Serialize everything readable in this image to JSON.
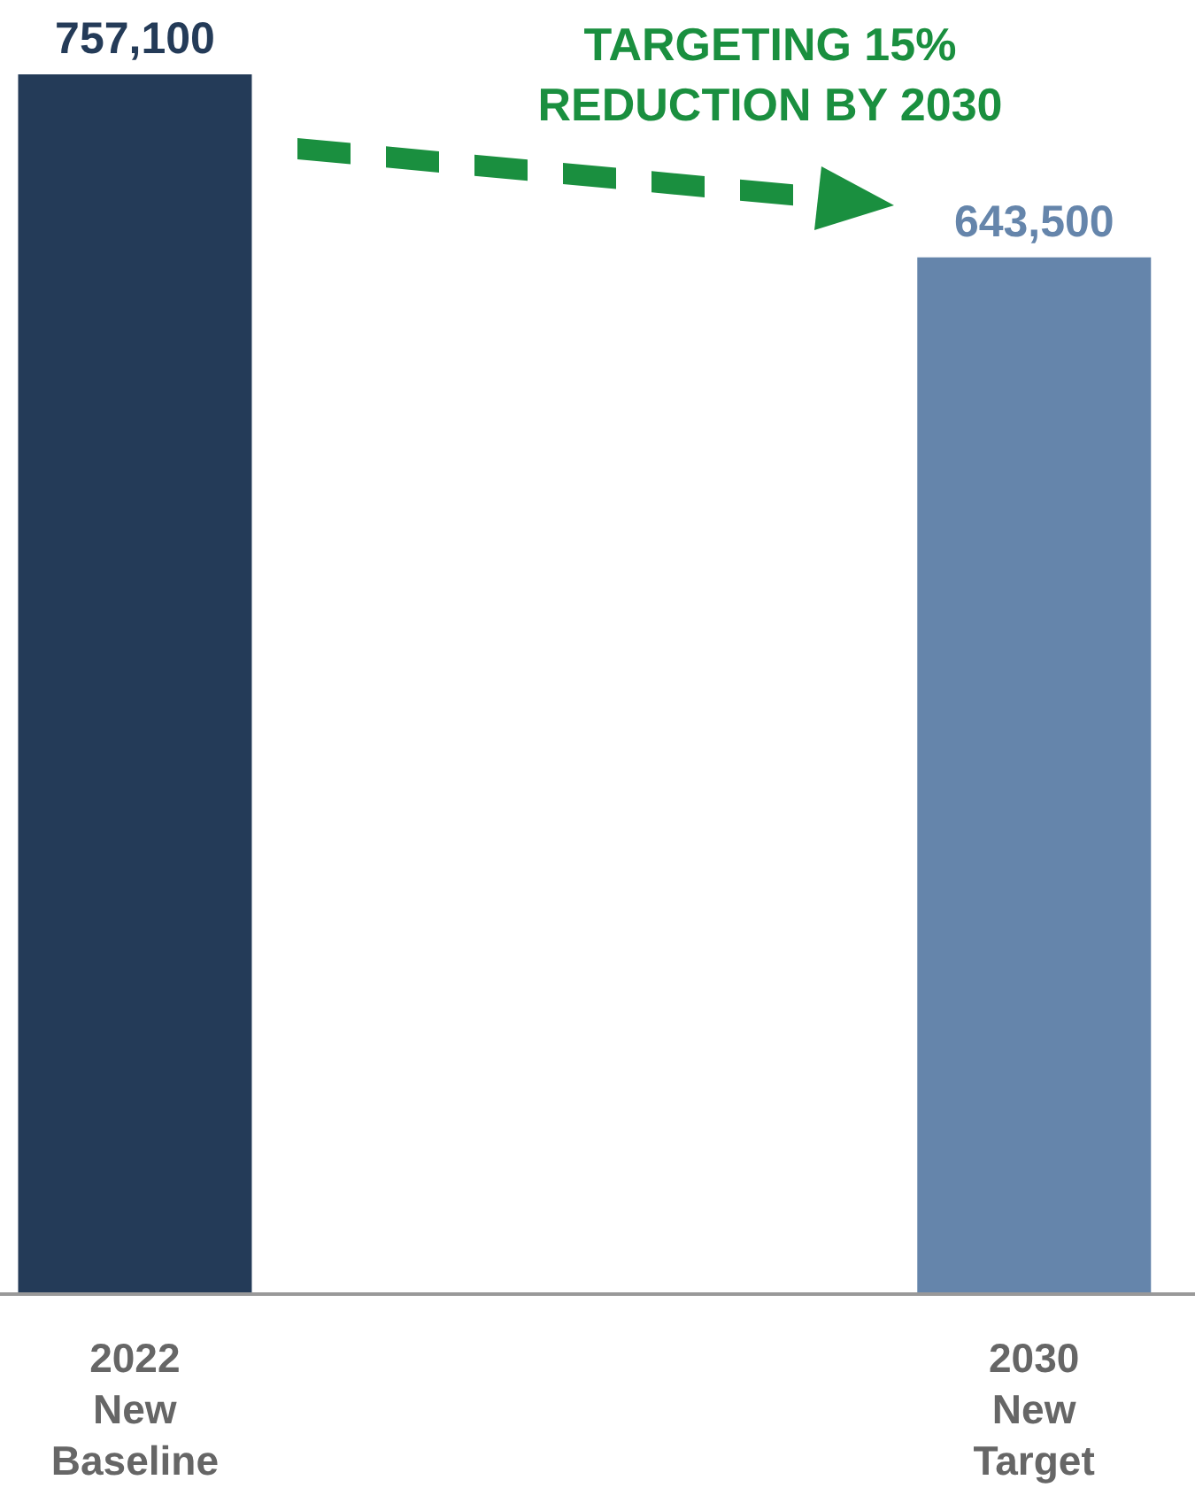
{
  "chart_data": {
    "type": "bar",
    "categories": [
      "2022 New Baseline",
      "2030 New Target"
    ],
    "values": [
      757100,
      643500
    ],
    "colors": [
      "#243b58",
      "#6585ab"
    ],
    "value_labels": [
      "757,100",
      "643,500"
    ],
    "annotations": [
      "TARGETING 15% REDUCTION BY 2030"
    ],
    "grid": false,
    "legend": false
  }
}
